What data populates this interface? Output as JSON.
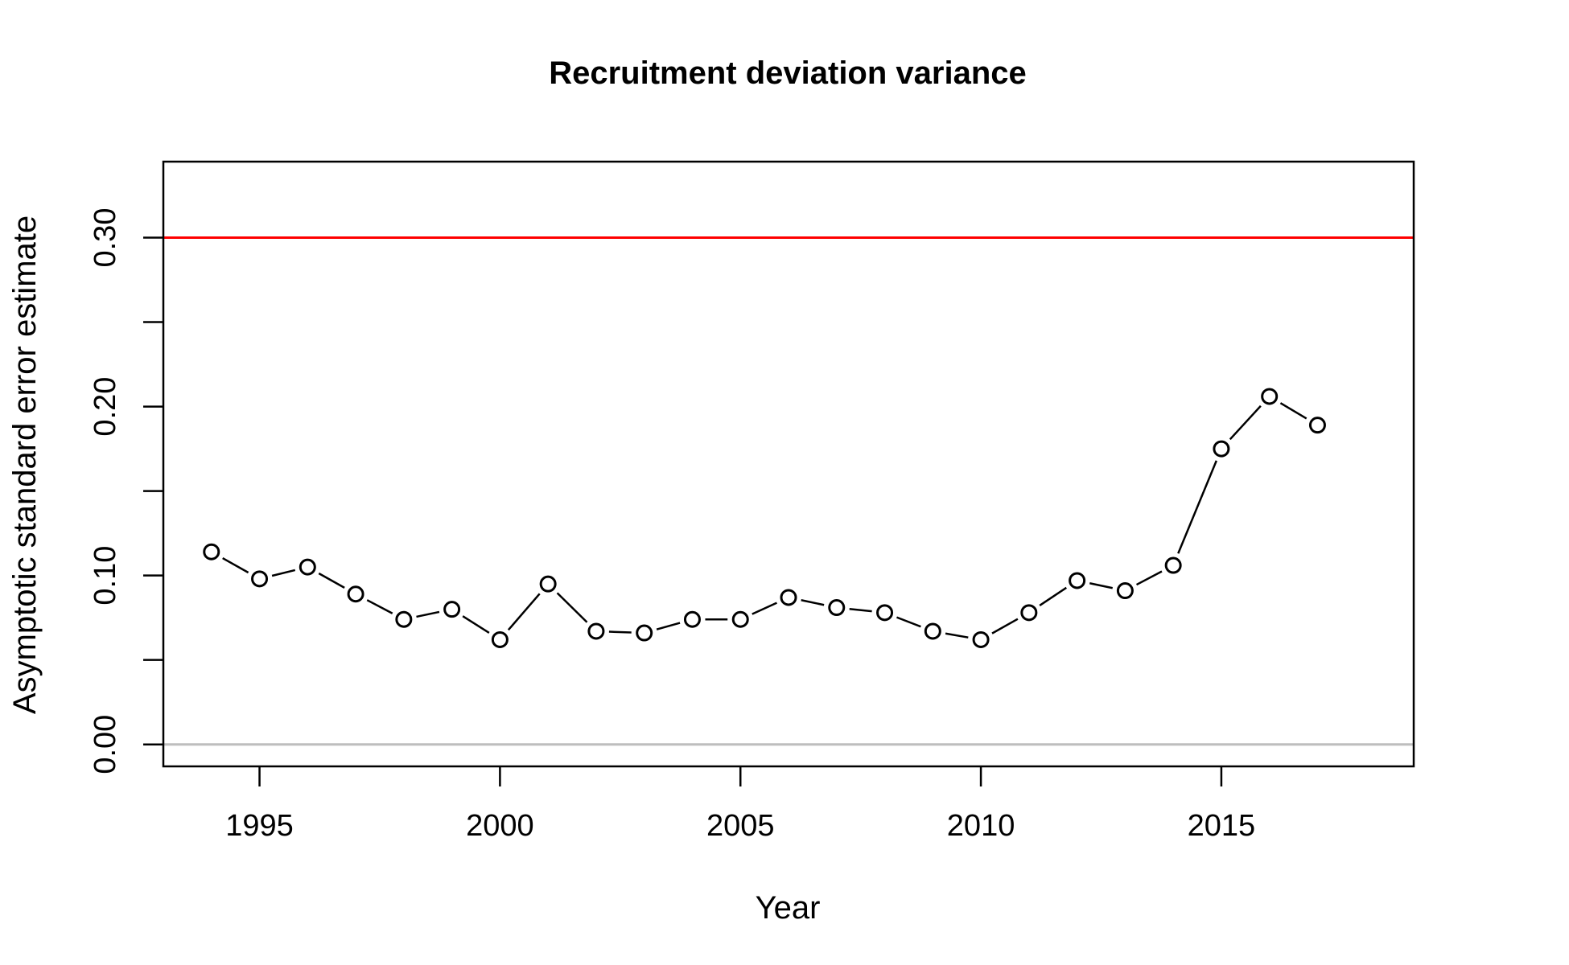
{
  "chart_data": {
    "type": "line",
    "title": "Recruitment deviation variance",
    "xlabel": "Year",
    "ylabel": "Asymptotic standard error estimate",
    "xlim": [
      1993,
      2019
    ],
    "ylim": [
      -0.013,
      0.345
    ],
    "x_ticks": [
      1995,
      2000,
      2005,
      2010,
      2015
    ],
    "y_ticks": [
      0.0,
      0.05,
      0.1,
      0.15,
      0.2,
      0.25,
      0.3
    ],
    "y_tick_labels": [
      {
        "value": 0.0,
        "label": "0.00"
      },
      {
        "value": 0.1,
        "label": "0.10"
      },
      {
        "value": 0.2,
        "label": "0.20"
      },
      {
        "value": 0.3,
        "label": "0.30"
      }
    ],
    "reference_lines": [
      {
        "y": 0.3,
        "color": "#ff0000"
      },
      {
        "y": 0.0,
        "color": "#bebebe"
      }
    ],
    "series": [
      {
        "marker": "open-circle",
        "color": "#000000",
        "x": [
          1994,
          1995,
          1996,
          1997,
          1998,
          1999,
          2000,
          2001,
          2002,
          2003,
          2004,
          2005,
          2006,
          2007,
          2008,
          2009,
          2010,
          2011,
          2012,
          2013,
          2014,
          2015,
          2016,
          2017
        ],
        "y": [
          0.114,
          0.098,
          0.105,
          0.089,
          0.074,
          0.08,
          0.062,
          0.095,
          0.067,
          0.066,
          0.074,
          0.074,
          0.087,
          0.081,
          0.078,
          0.067,
          0.062,
          0.078,
          0.097,
          0.091,
          0.106,
          0.175,
          0.206,
          0.189
        ]
      }
    ],
    "grid": false,
    "legend": "none"
  }
}
